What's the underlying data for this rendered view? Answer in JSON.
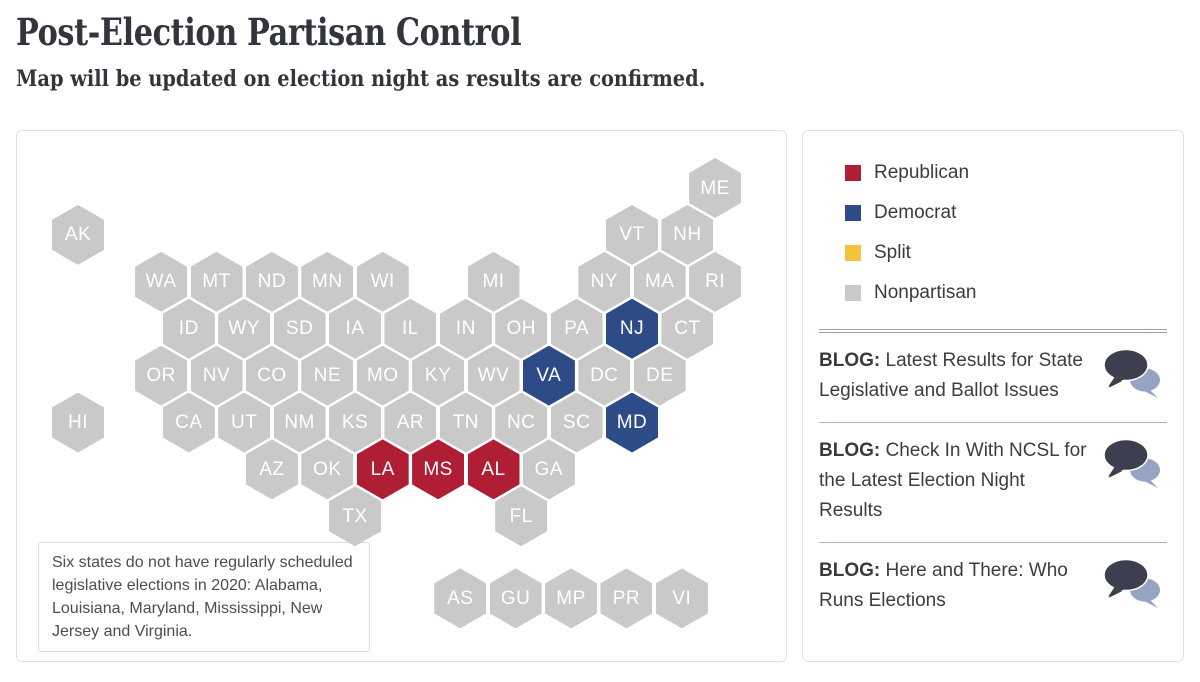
{
  "header": {
    "title": "Post-Election Partisan Control",
    "subtitle": "Map will be updated on election night as results are confirmed."
  },
  "legend": {
    "items": [
      {
        "id": "republican",
        "label": "Republican",
        "color": "#b01e35"
      },
      {
        "id": "democrat",
        "label": "Democrat",
        "color": "#2d4b87"
      },
      {
        "id": "split",
        "label": "Split",
        "color": "#f2c33d"
      },
      {
        "id": "nonpartisan",
        "label": "Nonpartisan",
        "color": "#c9c9c9"
      }
    ]
  },
  "map": {
    "type": "hex-tile-cartogram",
    "note": "Six states do not have regularly scheduled legislative elections in 2020: Alabama, Louisiana, Maryland, Mississippi, New Jersey and Virginia.",
    "parties": {
      "republican": "#b01e35",
      "democrat": "#2d4b87",
      "split": "#f2c33d",
      "nonpartisan": "#c9c9c9"
    },
    "states": [
      {
        "abbr": "ME",
        "party": "nonpartisan",
        "col": 11.5,
        "row": 0
      },
      {
        "abbr": "AK",
        "party": "nonpartisan",
        "col": 0,
        "row": 1
      },
      {
        "abbr": "VT",
        "party": "nonpartisan",
        "col": 10,
        "row": 1
      },
      {
        "abbr": "NH",
        "party": "nonpartisan",
        "col": 11,
        "row": 1
      },
      {
        "abbr": "WA",
        "party": "nonpartisan",
        "col": 1.5,
        "row": 2
      },
      {
        "abbr": "MT",
        "party": "nonpartisan",
        "col": 2.5,
        "row": 2
      },
      {
        "abbr": "ND",
        "party": "nonpartisan",
        "col": 3.5,
        "row": 2
      },
      {
        "abbr": "MN",
        "party": "nonpartisan",
        "col": 4.5,
        "row": 2
      },
      {
        "abbr": "WI",
        "party": "nonpartisan",
        "col": 5.5,
        "row": 2
      },
      {
        "abbr": "MI",
        "party": "nonpartisan",
        "col": 7.5,
        "row": 2
      },
      {
        "abbr": "NY",
        "party": "nonpartisan",
        "col": 9.5,
        "row": 2
      },
      {
        "abbr": "MA",
        "party": "nonpartisan",
        "col": 10.5,
        "row": 2
      },
      {
        "abbr": "RI",
        "party": "nonpartisan",
        "col": 11.5,
        "row": 2
      },
      {
        "abbr": "ID",
        "party": "nonpartisan",
        "col": 2,
        "row": 3
      },
      {
        "abbr": "WY",
        "party": "nonpartisan",
        "col": 3,
        "row": 3
      },
      {
        "abbr": "SD",
        "party": "nonpartisan",
        "col": 4,
        "row": 3
      },
      {
        "abbr": "IA",
        "party": "nonpartisan",
        "col": 5,
        "row": 3
      },
      {
        "abbr": "IL",
        "party": "nonpartisan",
        "col": 6,
        "row": 3
      },
      {
        "abbr": "IN",
        "party": "nonpartisan",
        "col": 7,
        "row": 3
      },
      {
        "abbr": "OH",
        "party": "nonpartisan",
        "col": 8,
        "row": 3
      },
      {
        "abbr": "PA",
        "party": "nonpartisan",
        "col": 9,
        "row": 3
      },
      {
        "abbr": "NJ",
        "party": "democrat",
        "col": 10,
        "row": 3
      },
      {
        "abbr": "CT",
        "party": "nonpartisan",
        "col": 11,
        "row": 3
      },
      {
        "abbr": "OR",
        "party": "nonpartisan",
        "col": 1.5,
        "row": 4
      },
      {
        "abbr": "NV",
        "party": "nonpartisan",
        "col": 2.5,
        "row": 4
      },
      {
        "abbr": "CO",
        "party": "nonpartisan",
        "col": 3.5,
        "row": 4
      },
      {
        "abbr": "NE",
        "party": "nonpartisan",
        "col": 4.5,
        "row": 4
      },
      {
        "abbr": "MO",
        "party": "nonpartisan",
        "col": 5.5,
        "row": 4
      },
      {
        "abbr": "KY",
        "party": "nonpartisan",
        "col": 6.5,
        "row": 4
      },
      {
        "abbr": "WV",
        "party": "nonpartisan",
        "col": 7.5,
        "row": 4
      },
      {
        "abbr": "VA",
        "party": "democrat",
        "col": 8.5,
        "row": 4
      },
      {
        "abbr": "DC",
        "party": "nonpartisan",
        "col": 9.5,
        "row": 4
      },
      {
        "abbr": "DE",
        "party": "nonpartisan",
        "col": 10.5,
        "row": 4
      },
      {
        "abbr": "HI",
        "party": "nonpartisan",
        "col": 0,
        "row": 5
      },
      {
        "abbr": "CA",
        "party": "nonpartisan",
        "col": 2,
        "row": 5
      },
      {
        "abbr": "UT",
        "party": "nonpartisan",
        "col": 3,
        "row": 5
      },
      {
        "abbr": "NM",
        "party": "nonpartisan",
        "col": 4,
        "row": 5
      },
      {
        "abbr": "KS",
        "party": "nonpartisan",
        "col": 5,
        "row": 5
      },
      {
        "abbr": "AR",
        "party": "nonpartisan",
        "col": 6,
        "row": 5
      },
      {
        "abbr": "TN",
        "party": "nonpartisan",
        "col": 7,
        "row": 5
      },
      {
        "abbr": "NC",
        "party": "nonpartisan",
        "col": 8,
        "row": 5
      },
      {
        "abbr": "SC",
        "party": "nonpartisan",
        "col": 9,
        "row": 5
      },
      {
        "abbr": "MD",
        "party": "democrat",
        "col": 10,
        "row": 5
      },
      {
        "abbr": "AZ",
        "party": "nonpartisan",
        "col": 3.5,
        "row": 6
      },
      {
        "abbr": "OK",
        "party": "nonpartisan",
        "col": 4.5,
        "row": 6
      },
      {
        "abbr": "LA",
        "party": "republican",
        "col": 5.5,
        "row": 6
      },
      {
        "abbr": "MS",
        "party": "republican",
        "col": 6.5,
        "row": 6
      },
      {
        "abbr": "AL",
        "party": "republican",
        "col": 7.5,
        "row": 6
      },
      {
        "abbr": "GA",
        "party": "nonpartisan",
        "col": 8.5,
        "row": 6
      },
      {
        "abbr": "TX",
        "party": "nonpartisan",
        "col": 5,
        "row": 7
      },
      {
        "abbr": "FL",
        "party": "nonpartisan",
        "col": 8,
        "row": 7
      },
      {
        "abbr": "AS",
        "party": "nonpartisan",
        "col": 6.9,
        "row": 8.75
      },
      {
        "abbr": "GU",
        "party": "nonpartisan",
        "col": 7.9,
        "row": 8.75
      },
      {
        "abbr": "MP",
        "party": "nonpartisan",
        "col": 8.9,
        "row": 8.75
      },
      {
        "abbr": "PR",
        "party": "nonpartisan",
        "col": 9.9,
        "row": 8.75
      },
      {
        "abbr": "VI",
        "party": "nonpartisan",
        "col": 10.9,
        "row": 8.75
      }
    ]
  },
  "blogs": [
    {
      "prefix": "BLOG:",
      "title": "Latest Results for State Legislative and Ballot Issues"
    },
    {
      "prefix": "BLOG:",
      "title": "Check In With NCSL for the Latest Election Night Results"
    },
    {
      "prefix": "BLOG:",
      "title": "Here and There: Who Runs Elections"
    }
  ],
  "icons": {
    "blog_icon_name": "speech-bubbles-icon",
    "blog_icon_dark": "#3d3f4e",
    "blog_icon_light": "#96a3c2"
  }
}
